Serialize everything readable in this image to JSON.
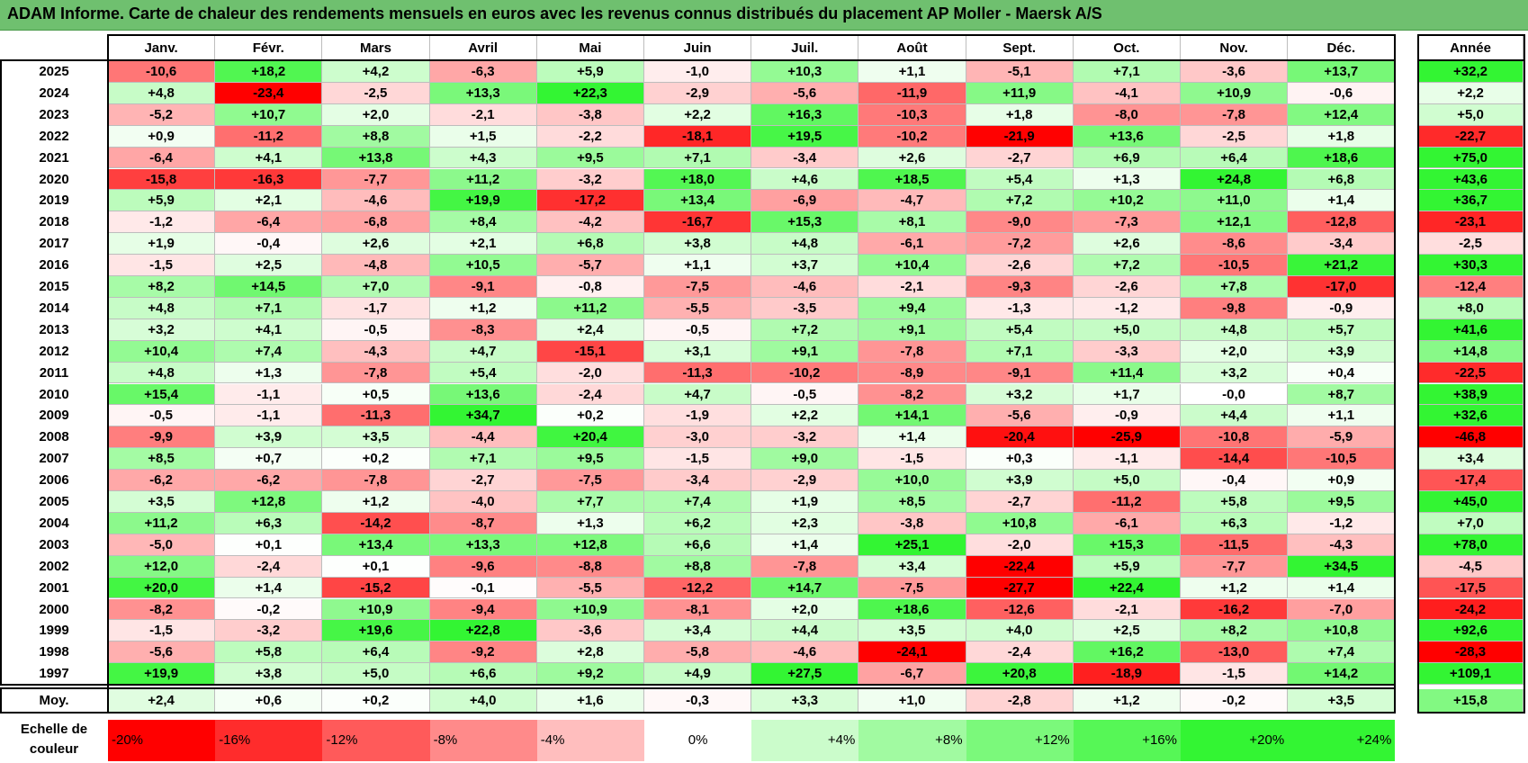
{
  "title": "ADAM Informe. Carte de chaleur des rendements mensuels en euros avec les revenus connus distribués du placement AP Moller - Maersk A/S",
  "colors": {
    "title_bg": "#6fc06f",
    "negative_max": "#ff0000",
    "neutral": "#ffffff",
    "positive_max": "#33ff33"
  },
  "chart_data": {
    "type": "heatmap",
    "title": "ADAM Informe. Carte de chaleur des rendements mensuels en euros avec les revenus connus distribués du placement AP Moller - Maersk A/S",
    "columns": [
      "Janv.",
      "Févr.",
      "Mars",
      "Avril",
      "Mai",
      "Juin",
      "Juil.",
      "Août",
      "Sept.",
      "Oct.",
      "Nov.",
      "Déc."
    ],
    "annual_header": "Année",
    "rows": [
      {
        "year": "2025",
        "values": [
          "-10,6",
          "+18,2",
          "+4,2",
          "-6,3",
          "+5,9",
          "-1,0",
          "+10,3",
          "+1,1",
          "-5,1",
          "+7,1",
          "-3,6",
          "+13,7"
        ],
        "annual": "+32,2"
      },
      {
        "year": "2024",
        "values": [
          "+4,8",
          "-23,4",
          "-2,5",
          "+13,3",
          "+22,3",
          "-2,9",
          "-5,6",
          "-11,9",
          "+11,9",
          "-4,1",
          "+10,9",
          "-0,6"
        ],
        "annual": "+2,2"
      },
      {
        "year": "2023",
        "values": [
          "-5,2",
          "+10,7",
          "+2,0",
          "-2,1",
          "-3,8",
          "+2,2",
          "+16,3",
          "-10,3",
          "+1,8",
          "-8,0",
          "-7,8",
          "+12,4"
        ],
        "annual": "+5,0"
      },
      {
        "year": "2022",
        "values": [
          "+0,9",
          "-11,2",
          "+8,8",
          "+1,5",
          "-2,2",
          "-18,1",
          "+19,5",
          "-10,2",
          "-21,9",
          "+13,6",
          "-2,5",
          "+1,8"
        ],
        "annual": "-22,7"
      },
      {
        "year": "2021",
        "values": [
          "-6,4",
          "+4,1",
          "+13,8",
          "+4,3",
          "+9,5",
          "+7,1",
          "-3,4",
          "+2,6",
          "-2,7",
          "+6,9",
          "+6,4",
          "+18,6"
        ],
        "annual": "+75,0"
      },
      {
        "year": "2020",
        "values": [
          "-15,8",
          "-16,3",
          "-7,7",
          "+11,2",
          "-3,2",
          "+18,0",
          "+4,6",
          "+18,5",
          "+5,4",
          "+1,3",
          "+24,8",
          "+6,8"
        ],
        "annual": "+43,6"
      },
      {
        "year": "2019",
        "values": [
          "+5,9",
          "+2,1",
          "-4,6",
          "+19,9",
          "-17,2",
          "+13,4",
          "-6,9",
          "-4,7",
          "+7,2",
          "+10,2",
          "+11,0",
          "+1,4"
        ],
        "annual": "+36,7"
      },
      {
        "year": "2018",
        "values": [
          "-1,2",
          "-6,4",
          "-6,8",
          "+8,4",
          "-4,2",
          "-16,7",
          "+15,3",
          "+8,1",
          "-9,0",
          "-7,3",
          "+12,1",
          "-12,8"
        ],
        "annual": "-23,1"
      },
      {
        "year": "2017",
        "values": [
          "+1,9",
          "-0,4",
          "+2,6",
          "+2,1",
          "+6,8",
          "+3,8",
          "+4,8",
          "-6,1",
          "-7,2",
          "+2,6",
          "-8,6",
          "-3,4"
        ],
        "annual": "-2,5"
      },
      {
        "year": "2016",
        "values": [
          "-1,5",
          "+2,5",
          "-4,8",
          "+10,5",
          "-5,7",
          "+1,1",
          "+3,7",
          "+10,4",
          "-2,6",
          "+7,2",
          "-10,5",
          "+21,2"
        ],
        "annual": "+30,3"
      },
      {
        "year": "2015",
        "values": [
          "+8,2",
          "+14,5",
          "+7,0",
          "-9,1",
          "-0,8",
          "-7,5",
          "-4,6",
          "-2,1",
          "-9,3",
          "-2,6",
          "+7,8",
          "-17,0"
        ],
        "annual": "-12,4"
      },
      {
        "year": "2014",
        "values": [
          "+4,8",
          "+7,1",
          "-1,7",
          "+1,2",
          "+11,2",
          "-5,5",
          "-3,5",
          "+9,4",
          "-1,3",
          "-1,2",
          "-9,8",
          "-0,9"
        ],
        "annual": "+8,0"
      },
      {
        "year": "2013",
        "values": [
          "+3,2",
          "+4,1",
          "-0,5",
          "-8,3",
          "+2,4",
          "-0,5",
          "+7,2",
          "+9,1",
          "+5,4",
          "+5,0",
          "+4,8",
          "+5,7"
        ],
        "annual": "+41,6"
      },
      {
        "year": "2012",
        "values": [
          "+10,4",
          "+7,4",
          "-4,3",
          "+4,7",
          "-15,1",
          "+3,1",
          "+9,1",
          "-7,8",
          "+7,1",
          "-3,3",
          "+2,0",
          "+3,9"
        ],
        "annual": "+14,8"
      },
      {
        "year": "2011",
        "values": [
          "+4,8",
          "+1,3",
          "-7,8",
          "+5,4",
          "-2,0",
          "-11,3",
          "-10,2",
          "-8,9",
          "-9,1",
          "+11,4",
          "+3,2",
          "+0,4"
        ],
        "annual": "-22,5"
      },
      {
        "year": "2010",
        "values": [
          "+15,4",
          "-1,1",
          "+0,5",
          "+13,6",
          "-2,4",
          "+4,7",
          "-0,5",
          "-8,2",
          "+3,2",
          "+1,7",
          "-0,0",
          "+8,7"
        ],
        "annual": "+38,9"
      },
      {
        "year": "2009",
        "values": [
          "-0,5",
          "-1,1",
          "-11,3",
          "+34,7",
          "+0,2",
          "-1,9",
          "+2,2",
          "+14,1",
          "-5,6",
          "-0,9",
          "+4,4",
          "+1,1"
        ],
        "annual": "+32,6"
      },
      {
        "year": "2008",
        "values": [
          "-9,9",
          "+3,9",
          "+3,5",
          "-4,4",
          "+20,4",
          "-3,0",
          "-3,2",
          "+1,4",
          "-20,4",
          "-25,9",
          "-10,8",
          "-5,9"
        ],
        "annual": "-46,8"
      },
      {
        "year": "2007",
        "values": [
          "+8,5",
          "+0,7",
          "+0,2",
          "+7,1",
          "+9,5",
          "-1,5",
          "+9,0",
          "-1,5",
          "+0,3",
          "-1,1",
          "-14,4",
          "-10,5"
        ],
        "annual": "+3,4"
      },
      {
        "year": "2006",
        "values": [
          "-6,2",
          "-6,2",
          "-7,8",
          "-2,7",
          "-7,5",
          "-3,4",
          "-2,9",
          "+10,0",
          "+3,9",
          "+5,0",
          "-0,4",
          "+0,9"
        ],
        "annual": "-17,4"
      },
      {
        "year": "2005",
        "values": [
          "+3,5",
          "+12,8",
          "+1,2",
          "-4,0",
          "+7,7",
          "+7,4",
          "+1,9",
          "+8,5",
          "-2,7",
          "-11,2",
          "+5,8",
          "+9,5"
        ],
        "annual": "+45,0"
      },
      {
        "year": "2004",
        "values": [
          "+11,2",
          "+6,3",
          "-14,2",
          "-8,7",
          "+1,3",
          "+6,2",
          "+2,3",
          "-3,8",
          "+10,8",
          "-6,1",
          "+6,3",
          "-1,2"
        ],
        "annual": "+7,0"
      },
      {
        "year": "2003",
        "values": [
          "-5,0",
          "+0,1",
          "+13,4",
          "+13,3",
          "+12,8",
          "+6,6",
          "+1,4",
          "+25,1",
          "-2,0",
          "+15,3",
          "-11,5",
          "-4,3"
        ],
        "annual": "+78,0"
      },
      {
        "year": "2002",
        "values": [
          "+12,0",
          "-2,4",
          "+0,1",
          "-9,6",
          "-8,8",
          "+8,8",
          "-7,8",
          "+3,4",
          "-22,4",
          "+5,9",
          "-7,7",
          "+34,5"
        ],
        "annual": "-4,5"
      },
      {
        "year": "2001",
        "values": [
          "+20,0",
          "+1,4",
          "-15,2",
          "-0,1",
          "-5,5",
          "-12,2",
          "+14,7",
          "-7,5",
          "-27,7",
          "+22,4",
          "+1,2",
          "+1,4"
        ],
        "annual": "-17,5"
      },
      {
        "year": "2000",
        "values": [
          "-8,2",
          "-0,2",
          "+10,9",
          "-9,4",
          "+10,9",
          "-8,1",
          "+2,0",
          "+18,6",
          "-12,6",
          "-2,1",
          "-16,2",
          "-7,0"
        ],
        "annual": "-24,2"
      },
      {
        "year": "1999",
        "values": [
          "-1,5",
          "-3,2",
          "+19,6",
          "+22,8",
          "-3,6",
          "+3,4",
          "+4,4",
          "+3,5",
          "+4,0",
          "+2,5",
          "+8,2",
          "+10,8"
        ],
        "annual": "+92,6"
      },
      {
        "year": "1998",
        "values": [
          "-5,6",
          "+5,8",
          "+6,4",
          "-9,2",
          "+2,8",
          "-5,8",
          "-4,6",
          "-24,1",
          "-2,4",
          "+16,2",
          "-13,0",
          "+7,4"
        ],
        "annual": "-28,3"
      },
      {
        "year": "1997",
        "values": [
          "+19,9",
          "+3,8",
          "+5,0",
          "+6,6",
          "+9,2",
          "+4,9",
          "+27,5",
          "-6,7",
          "+20,8",
          "-18,9",
          "-1,5",
          "+14,2"
        ],
        "annual": "+109,1"
      }
    ],
    "average": {
      "label": "Moy.",
      "values": [
        "+2,4",
        "+0,6",
        "+0,2",
        "+4,0",
        "+1,6",
        "-0,3",
        "+3,3",
        "+1,0",
        "-2,8",
        "+1,2",
        "-0,2",
        "+3,5"
      ],
      "annual": "+15,8"
    },
    "scale": {
      "label_line1": "Echelle de",
      "label_line2": "couleur",
      "steps": [
        {
          "label": "-20%",
          "value": -20
        },
        {
          "label": "-16%",
          "value": -16
        },
        {
          "label": "-12%",
          "value": -12
        },
        {
          "label": "-8%",
          "value": -8
        },
        {
          "label": "-4%",
          "value": -4
        },
        {
          "label": "0%",
          "value": 0
        },
        {
          "label": "+4%",
          "value": 4
        },
        {
          "label": "+8%",
          "value": 8
        },
        {
          "label": "+12%",
          "value": 12
        },
        {
          "label": "+16%",
          "value": 16
        },
        {
          "label": "+20%",
          "value": 20
        },
        {
          "label": "+24%",
          "value": 24
        }
      ]
    }
  }
}
